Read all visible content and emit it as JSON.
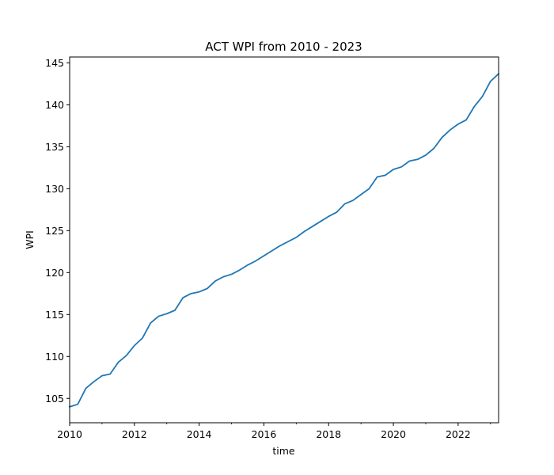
{
  "chart_data": {
    "type": "line",
    "title": "ACT WPI from 2010 - 2023",
    "xlabel": "time",
    "ylabel": "WPI",
    "xlim": [
      2010.0,
      2023.25
    ],
    "ylim": [
      102.1,
      145.7
    ],
    "x_ticks": [
      2010,
      2012,
      2014,
      2016,
      2018,
      2020,
      2022
    ],
    "x_tick_labels": [
      "2010",
      "2012",
      "2014",
      "2016",
      "2018",
      "2020",
      "2022"
    ],
    "y_ticks": [
      105,
      110,
      115,
      120,
      125,
      130,
      135,
      140,
      145
    ],
    "y_tick_labels": [
      "105",
      "110",
      "115",
      "120",
      "125",
      "130",
      "135",
      "140",
      "145"
    ],
    "grid": false,
    "legend": "none",
    "colors": {
      "series": "#1f77b4",
      "axes": "#000000",
      "background": "#ffffff"
    },
    "series": [
      {
        "x": [
          2010.0,
          2010.25,
          2010.5,
          2010.75,
          2011.0,
          2011.25,
          2011.5,
          2011.75,
          2012.0,
          2012.25,
          2012.5,
          2012.75,
          2013.0,
          2013.25,
          2013.5,
          2013.75,
          2014.0,
          2014.25,
          2014.5,
          2014.75,
          2015.0,
          2015.25,
          2015.5,
          2015.75,
          2016.0,
          2016.25,
          2016.5,
          2016.75,
          2017.0,
          2017.25,
          2017.5,
          2017.75,
          2018.0,
          2018.25,
          2018.5,
          2018.75,
          2019.0,
          2019.25,
          2019.5,
          2019.75,
          2020.0,
          2020.25,
          2020.5,
          2020.75,
          2021.0,
          2021.25,
          2021.5,
          2021.75,
          2022.0,
          2022.25,
          2022.5,
          2022.75,
          2023.0,
          2023.25
        ],
        "y": [
          104.0,
          104.3,
          106.2,
          107.0,
          107.7,
          107.9,
          109.3,
          110.1,
          111.3,
          112.2,
          114.0,
          114.8,
          115.1,
          115.5,
          117.0,
          117.5,
          117.7,
          118.1,
          119.0,
          119.5,
          119.8,
          120.3,
          120.9,
          121.4,
          122.0,
          122.6,
          123.2,
          123.7,
          124.2,
          124.9,
          125.5,
          126.1,
          126.7,
          127.2,
          128.2,
          128.6,
          129.3,
          130.0,
          131.4,
          131.6,
          132.3,
          132.6,
          133.3,
          133.5,
          134.0,
          134.8,
          136.1,
          137.0,
          137.7,
          138.2,
          139.8,
          141.0,
          142.8,
          143.7
        ]
      }
    ]
  }
}
